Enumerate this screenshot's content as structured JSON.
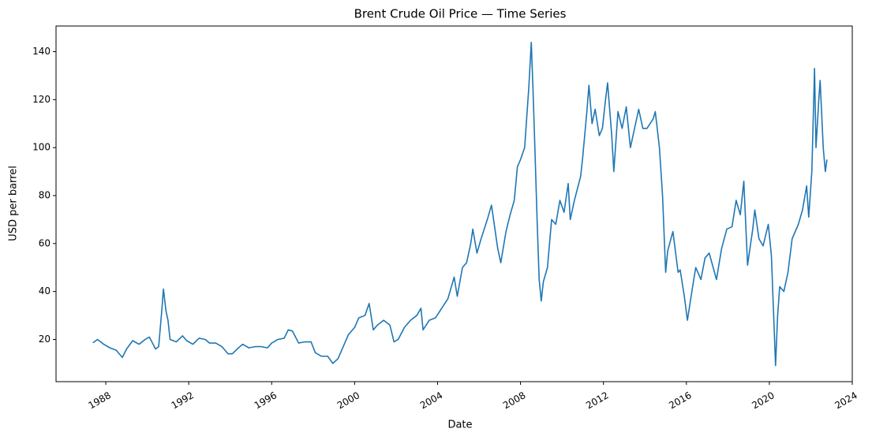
{
  "chart_data": {
    "type": "line",
    "title": "Brent Crude Oil Price — Time Series",
    "x_label": "Date",
    "y_label": "USD per barrel",
    "xlim": [
      1985.6,
      2024.0
    ],
    "ylim": [
      2.4,
      150.7
    ],
    "xticks": [
      1988,
      1992,
      1996,
      2000,
      2004,
      2008,
      2012,
      2016,
      2020,
      2024
    ],
    "yticks": [
      20,
      40,
      60,
      80,
      100,
      120,
      140
    ],
    "grid": false,
    "series": [
      {
        "name": "Brent",
        "color": "#1f77b4",
        "x": [
          1987.38,
          1987.6,
          1987.9,
          1988.2,
          1988.5,
          1988.8,
          1989.0,
          1989.3,
          1989.6,
          1989.9,
          1990.1,
          1990.4,
          1990.55,
          1990.7,
          1990.78,
          1990.9,
          1991.0,
          1991.1,
          1991.4,
          1991.7,
          1991.9,
          1992.2,
          1992.5,
          1992.8,
          1993.0,
          1993.3,
          1993.6,
          1993.9,
          1994.1,
          1994.4,
          1994.6,
          1994.9,
          1995.2,
          1995.5,
          1995.8,
          1996.0,
          1996.3,
          1996.6,
          1996.8,
          1997.0,
          1997.3,
          1997.6,
          1997.9,
          1998.1,
          1998.4,
          1998.7,
          1998.95,
          1999.2,
          1999.4,
          1999.7,
          2000.0,
          2000.2,
          2000.5,
          2000.7,
          2000.9,
          2001.1,
          2001.4,
          2001.7,
          2001.9,
          2002.1,
          2002.4,
          2002.7,
          2003.0,
          2003.2,
          2003.3,
          2003.6,
          2003.9,
          2004.2,
          2004.5,
          2004.8,
          2004.95,
          2005.2,
          2005.4,
          2005.6,
          2005.7,
          2005.9,
          2006.1,
          2006.4,
          2006.6,
          2006.9,
          2007.05,
          2007.3,
          2007.5,
          2007.7,
          2007.85,
          2008.0,
          2008.2,
          2008.4,
          2008.52,
          2008.6,
          2008.7,
          2008.8,
          2008.9,
          2009.0,
          2009.1,
          2009.3,
          2009.5,
          2009.7,
          2009.9,
          2010.1,
          2010.3,
          2010.4,
          2010.6,
          2010.9,
          2011.0,
          2011.2,
          2011.3,
          2011.45,
          2011.6,
          2011.8,
          2011.95,
          2012.1,
          2012.2,
          2012.4,
          2012.5,
          2012.7,
          2012.9,
          2013.1,
          2013.3,
          2013.5,
          2013.7,
          2013.9,
          2014.1,
          2014.4,
          2014.5,
          2014.7,
          2014.85,
          2015.0,
          2015.1,
          2015.35,
          2015.6,
          2015.7,
          2015.9,
          2016.05,
          2016.3,
          2016.45,
          2016.7,
          2016.9,
          2017.1,
          2017.45,
          2017.7,
          2017.95,
          2018.2,
          2018.4,
          2018.6,
          2018.77,
          2018.95,
          2019.2,
          2019.3,
          2019.5,
          2019.7,
          2019.95,
          2020.1,
          2020.2,
          2020.3,
          2020.4,
          2020.5,
          2020.7,
          2020.9,
          2021.1,
          2021.4,
          2021.6,
          2021.8,
          2021.9,
          2022.05,
          2022.18,
          2022.25,
          2022.4,
          2022.45,
          2022.6,
          2022.7,
          2022.78
        ],
        "values": [
          18.6,
          20.0,
          18.0,
          16.5,
          15.5,
          12.5,
          16.0,
          19.5,
          18.0,
          20.0,
          21.0,
          16.0,
          17.0,
          32.0,
          41.0,
          32.0,
          28.0,
          20.0,
          19.0,
          21.5,
          19.5,
          18.0,
          20.5,
          20.0,
          18.5,
          18.5,
          17.0,
          14.0,
          14.0,
          16.5,
          18.0,
          16.5,
          17.0,
          17.0,
          16.5,
          18.5,
          20.0,
          20.5,
          24.0,
          23.5,
          18.5,
          19.0,
          19.0,
          14.5,
          13.0,
          13.0,
          10.0,
          12.0,
          16.0,
          22.0,
          25.0,
          29.0,
          30.0,
          35.0,
          24.0,
          26.0,
          28.0,
          26.0,
          19.0,
          20.0,
          25.0,
          28.0,
          30.0,
          33.0,
          24.0,
          28.0,
          29.0,
          33.0,
          37.0,
          46.0,
          38.0,
          50.0,
          52.0,
          60.0,
          66.0,
          56.0,
          62.0,
          70.0,
          76.0,
          58.0,
          52.0,
          65.0,
          72.0,
          78.0,
          92.0,
          95.0,
          100.0,
          125.0,
          143.9,
          125.0,
          98.0,
          70.0,
          45.0,
          36.0,
          44.0,
          50.0,
          70.0,
          68.0,
          78.0,
          73.0,
          85.0,
          70.0,
          78.0,
          88.0,
          96.0,
          115.0,
          126.0,
          110.0,
          116.0,
          105.0,
          108.0,
          120.0,
          127.0,
          105.0,
          90.0,
          115.0,
          108.0,
          117.0,
          100.0,
          108.0,
          116.0,
          108.0,
          108.0,
          112.0,
          115.0,
          100.0,
          80.0,
          48.0,
          57.0,
          65.0,
          48.0,
          49.0,
          38.0,
          28.0,
          42.0,
          50.0,
          45.0,
          54.0,
          56.0,
          45.0,
          58.0,
          66.0,
          67.0,
          78.0,
          72.0,
          86.0,
          51.0,
          66.0,
          74.0,
          62.0,
          59.0,
          68.0,
          55.0,
          32.0,
          9.1,
          30.0,
          42.0,
          40.0,
          48.0,
          62.0,
          68.0,
          74.0,
          84.0,
          71.0,
          90.0,
          133.0,
          100.0,
          122.0,
          128.0,
          100.0,
          90.0,
          95.0
        ]
      }
    ]
  }
}
